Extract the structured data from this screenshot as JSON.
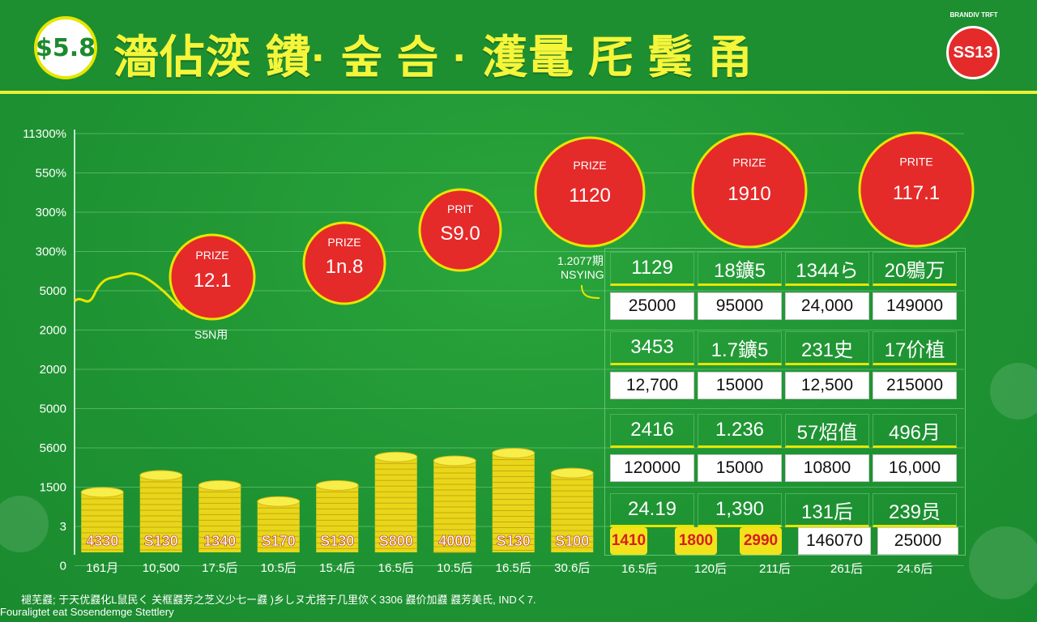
{
  "header": {
    "logo_text": "$5.8",
    "title": "濇佔湙 鐨· 숲 슴 · 濩鼌 厇 鬓 甬",
    "badge_ring": "BRANDIV TRFT",
    "badge_text": "SS13"
  },
  "colors": {
    "background": "#1f9433",
    "accent_yellow": "#f5f53a",
    "prize_red": "#e52a2a",
    "coin_yellow": "#f2e21b"
  },
  "chart_data": {
    "type": "bar",
    "y_tick_labels": [
      "11300%",
      "550%",
      "300%",
      "300%",
      "5000",
      "2000",
      "2000",
      "5000",
      "5600",
      "1500",
      "3",
      "0"
    ],
    "categories": [
      "161月",
      "10,500",
      "17.5后",
      "10.5后",
      "15.4后",
      "16.5后",
      "10.5后",
      "16.5后",
      "30.6后"
    ],
    "coin_labels": [
      "4330",
      "S130",
      "1340",
      "S170",
      "S130",
      "S800",
      "4000",
      "S130",
      "S100"
    ],
    "coin_stack_levels": [
      0.78,
      1.0,
      0.87,
      0.66,
      0.87,
      1.24,
      1.19,
      1.29,
      1.03
    ],
    "line_note": "S5N用",
    "prizes": [
      {
        "label": "PRIZE",
        "value": "12.1"
      },
      {
        "label": "PRIZE",
        "value": "1n.8"
      },
      {
        "label": "PRIT",
        "value": "S9.0"
      },
      {
        "label": "PRIZE",
        "value": "1120"
      },
      {
        "label": "PRIZE",
        "value": "1910"
      },
      {
        "label": "PRITE",
        "value": "117.1"
      }
    ],
    "table_note": [
      "1.2077期",
      "NSYING"
    ]
  },
  "table": {
    "rows": [
      {
        "top": [
          "1129",
          "18鑛5",
          "1344ら",
          "20鶍万"
        ],
        "bottom": [
          "25000",
          "95000",
          "24,000",
          "149000"
        ]
      },
      {
        "top": [
          "3453",
          "1.7鑛5",
          "231史",
          "17价植"
        ],
        "bottom": [
          "12,700",
          "15000",
          "12,500",
          "215000"
        ]
      },
      {
        "top": [
          "2416",
          "1.236",
          "57炤值",
          "496月"
        ],
        "bottom": [
          "120000",
          "15000",
          "10800",
          "16,000"
        ]
      },
      {
        "top": [
          "24.19",
          "1,390",
          "131后",
          "239员"
        ],
        "bottom": [
          "1410",
          "1800",
          "2990",
          "146070",
          "25000"
        ]
      }
    ],
    "x_labels": [
      "16.5后",
      "120后",
      "211后",
      "261后",
      "24.6后"
    ]
  },
  "footer": {
    "line1": "褪芜鼝; 于天优鼝化L鼠民く 关框鼝芳之芝义少七ー鼝 )乡しヌ尤搭于几里佽く3306 鼝价加鼝 鼝芳美氏, INDく7.",
    "line2": "Fouraligtet eat Sosendemge Stettlery"
  }
}
